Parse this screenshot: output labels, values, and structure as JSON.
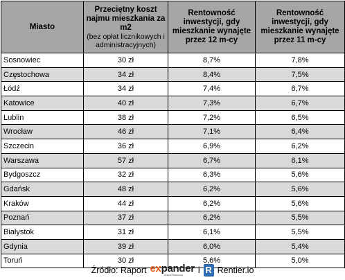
{
  "headers": {
    "city": "Miasto",
    "cost_title": "Przeciętny koszt najmu mieszkania za m2",
    "cost_note": "(bez opłat licznikowych i administracyjnych)",
    "yield12": "Rentowność inwestycji, gdy mieszkanie wynajęte przez 12 m-cy",
    "yield11": "Rentowność inwestycji, gdy mieszkanie wynajęte przez 11 m-cy"
  },
  "rows": [
    {
      "city": "Sosnowiec",
      "cost": "30 zł",
      "y12": "8,7%",
      "y11": "7,8%"
    },
    {
      "city": "Częstochowa",
      "cost": "34 zł",
      "y12": "8,4%",
      "y11": "7,5%"
    },
    {
      "city": "Łódź",
      "cost": "34 zł",
      "y12": "7,4%",
      "y11": "6,7%"
    },
    {
      "city": "Katowice",
      "cost": "40 zł",
      "y12": "7,3%",
      "y11": "6,7%"
    },
    {
      "city": "Lublin",
      "cost": "38 zł",
      "y12": "7,2%",
      "y11": "6,5%"
    },
    {
      "city": "Wrocław",
      "cost": "46 zł",
      "y12": "7,1%",
      "y11": "6,4%"
    },
    {
      "city": "Szczecin",
      "cost": "36 zł",
      "y12": "6,9%",
      "y11": "6,2%"
    },
    {
      "city": "Warszawa",
      "cost": "57 zł",
      "y12": "6,7%",
      "y11": "6,1%"
    },
    {
      "city": "Bydgoszcz",
      "cost": "32 zł",
      "y12": "6,3%",
      "y11": "5,6%"
    },
    {
      "city": "Gdańsk",
      "cost": "48 zł",
      "y12": "6,2%",
      "y11": "5,6%"
    },
    {
      "city": "Kraków",
      "cost": "44 zł",
      "y12": "6,2%",
      "y11": "5,6%"
    },
    {
      "city": "Poznań",
      "cost": "37 zł",
      "y12": "6,2%",
      "y11": "5,5%"
    },
    {
      "city": "Białystok",
      "cost": "31 zł",
      "y12": "6,1%",
      "y11": "5,5%"
    },
    {
      "city": "Gdynia",
      "cost": "39 zł",
      "y12": "6,0%",
      "y11": "5,4%"
    },
    {
      "city": "Toruń",
      "cost": "30 zł",
      "y12": "5,6%",
      "y11": "5,0%"
    }
  ],
  "footer": {
    "source_label": "Źródło: Raport",
    "expander_ex": "ex",
    "expander_rest": "pander",
    "expander_tagline": "Zespół Finansowy",
    "connector": "i",
    "rentier_icon_letter": "R",
    "rentier_name": "Rentier.io"
  },
  "colors": {
    "header_bg": "#a6a6a6",
    "shade_bg": "#d9d9d9",
    "expander_accent": "#e8601c",
    "rentier_blue": "#2f6bb0"
  }
}
